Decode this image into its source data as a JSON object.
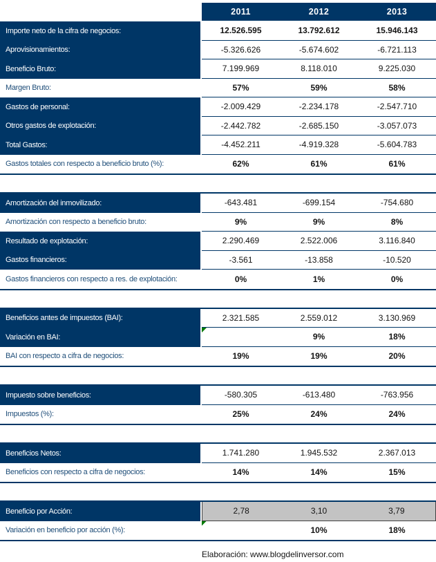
{
  "header": {
    "years": [
      "2011",
      "2012",
      "2013"
    ]
  },
  "colors": {
    "navy": "#003666",
    "label_blue": "#1f4e79",
    "gray_bg": "#c3c3c3",
    "gray_border": "#404040",
    "marker_green": "#007a00"
  },
  "sections": [
    {
      "name": "revenue-and-expenses",
      "rows": [
        {
          "label": "Importe neto de la cifra de negocios:",
          "label_style": "navy",
          "values": [
            "12.526.595",
            "13.792.612",
            "15.946.143"
          ],
          "bold": true
        },
        {
          "label": "Aprovisionamientos:",
          "label_style": "navy",
          "values": [
            "-5.326.626",
            "-5.674.602",
            "-6.721.113"
          ],
          "bold": false
        },
        {
          "label": "Beneficio Bruto:",
          "label_style": "navy",
          "values": [
            "7.199.969",
            "8.118.010",
            "9.225.030"
          ],
          "bold": false
        },
        {
          "label": "Margen Bruto:",
          "label_style": "blue",
          "values": [
            "57%",
            "59%",
            "58%"
          ],
          "bold": true
        },
        {
          "label": "Gastos de personal:",
          "label_style": "navy",
          "values": [
            "-2.009.429",
            "-2.234.178",
            "-2.547.710"
          ],
          "bold": false
        },
        {
          "label": "Otros gastos de explotación:",
          "label_style": "navy",
          "values": [
            "-2.442.782",
            "-2.685.150",
            "-3.057.073"
          ],
          "bold": false
        },
        {
          "label": "Total Gastos:",
          "label_style": "navy",
          "values": [
            "-4.452.211",
            "-4.919.328",
            "-5.604.783"
          ],
          "bold": false
        },
        {
          "label": "Gastos totales con respecto a beneficio bruto (%):",
          "label_style": "blue",
          "values": [
            "62%",
            "61%",
            "61%"
          ],
          "bold": true
        }
      ]
    },
    {
      "name": "amortization-and-operating-result",
      "rows": [
        {
          "label": "Amortización del inmovilizado:",
          "label_style": "navy",
          "values": [
            "-643.481",
            "-699.154",
            "-754.680"
          ],
          "bold": false
        },
        {
          "label": "Amortización con respecto a beneficio bruto:",
          "label_style": "blue",
          "values": [
            "9%",
            "9%",
            "8%"
          ],
          "bold": true
        },
        {
          "label": "Resultado de explotación:",
          "label_style": "navy",
          "values": [
            "2.290.469",
            "2.522.006",
            "3.116.840"
          ],
          "bold": false
        },
        {
          "label": "Gastos financieros:",
          "label_style": "navy",
          "values": [
            "-3.561",
            "-13.858",
            "-10.520"
          ],
          "bold": false
        },
        {
          "label": "Gastos financieros con respecto a res. de explotación:",
          "label_style": "blue",
          "values": [
            "0%",
            "1%",
            "0%"
          ],
          "bold": true
        }
      ]
    },
    {
      "name": "pre-tax-profit",
      "rows": [
        {
          "label": "Beneficios antes de impuestos (BAI):",
          "label_style": "navy",
          "values": [
            "2.321.585",
            "2.559.012",
            "3.130.969"
          ],
          "bold": false
        },
        {
          "label": "Variación en BAI:",
          "label_style": "navy",
          "values": [
            "",
            "9%",
            "18%"
          ],
          "bold": true,
          "marker_cell": 0
        },
        {
          "label": "BAI con respecto a cifra de negocios:",
          "label_style": "blue",
          "values": [
            "19%",
            "19%",
            "20%"
          ],
          "bold": true
        }
      ]
    },
    {
      "name": "taxes",
      "rows": [
        {
          "label": "Impuesto sobre beneficios:",
          "label_style": "navy",
          "values": [
            "-580.305",
            "-613.480",
            "-763.956"
          ],
          "bold": false
        },
        {
          "label": "Impuestos (%):",
          "label_style": "blue",
          "values": [
            "25%",
            "24%",
            "24%"
          ],
          "bold": true
        }
      ]
    },
    {
      "name": "net-profit",
      "rows": [
        {
          "label": "Beneficios Netos:",
          "label_style": "navy",
          "values": [
            "1.741.280",
            "1.945.532",
            "2.367.013"
          ],
          "bold": false
        },
        {
          "label": "Beneficios con respecto a cifra de negocios:",
          "label_style": "blue",
          "values": [
            "14%",
            "14%",
            "15%"
          ],
          "bold": true
        }
      ]
    },
    {
      "name": "earnings-per-share",
      "rows": [
        {
          "label": "Beneficio por Acción:",
          "label_style": "navy",
          "values": [
            "2,78",
            "3,10",
            "3,79"
          ],
          "bold": false,
          "gray": true
        },
        {
          "label": "Variación en beneficio por acción (%):",
          "label_style": "blue",
          "values": [
            "",
            "10%",
            "18%"
          ],
          "bold": true,
          "marker_cell": 0
        }
      ]
    }
  ],
  "footer": {
    "text": "Elaboración: www.blogdelinversor.com"
  }
}
